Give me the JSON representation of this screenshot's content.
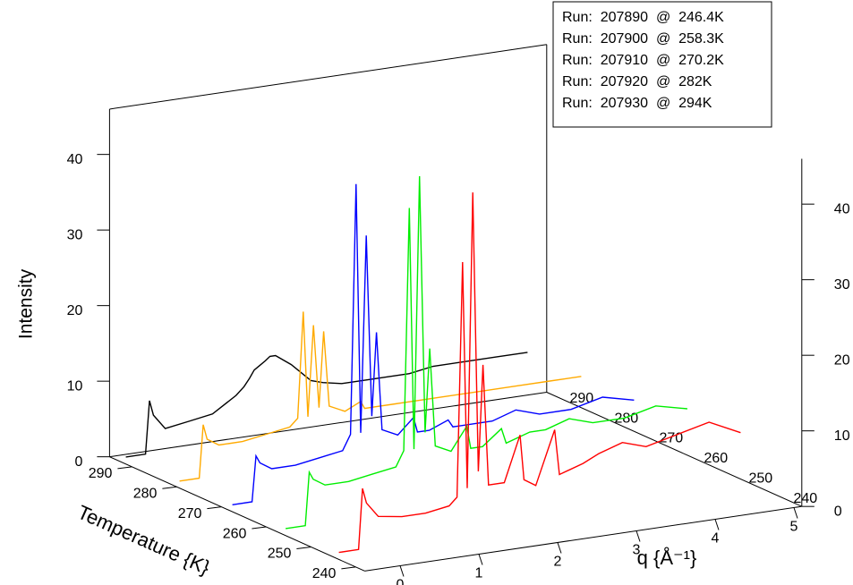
{
  "chart_data": {
    "type": "waterfall3d",
    "x_label": "q {Å⁻¹}",
    "y_label": "Intensity",
    "z_label": "Temperature {K}",
    "x": [
      -0.3,
      -0.05,
      0,
      0.05,
      0.2,
      0.5,
      0.8,
      1.1,
      1.2,
      1.27,
      1.33,
      1.4,
      1.47,
      1.53,
      1.6,
      1.8,
      2.0,
      2.05,
      2.2,
      2.44,
      2.5,
      2.8,
      3.0,
      3.3,
      3.6,
      4.0,
      4.4,
      4.8
    ],
    "series": [
      {
        "name": "Run:  207890  @  246.4K",
        "color": "#ff0000",
        "temperature": 246.4,
        "values": [
          0,
          0,
          8,
          6,
          4,
          3.5,
          3.5,
          4,
          5,
          36,
          6,
          45,
          8,
          22,
          6,
          6,
          12,
          6,
          5,
          12,
          6,
          7,
          8,
          9,
          8,
          9,
          10,
          8
        ]
      },
      {
        "name": "Run:  207900  @  258.3K",
        "color": "#00ee00",
        "temperature": 258.3,
        "values": [
          0,
          0,
          7,
          6,
          5,
          5,
          5.5,
          6,
          8,
          40,
          8,
          44,
          10,
          21,
          8,
          7,
          10,
          7,
          7,
          9,
          7,
          8,
          8,
          9,
          8,
          8,
          9,
          8
        ]
      },
      {
        "name": "Run:  207910  @  270.2K",
        "color": "#0000ff",
        "temperature": 270.2,
        "values": [
          0,
          0,
          6,
          5,
          4,
          4,
          4.5,
          5,
          7,
          40,
          7,
          33,
          9,
          20,
          7,
          6,
          8,
          6,
          6,
          7,
          6,
          6,
          6,
          7,
          6,
          6,
          7,
          6
        ]
      },
      {
        "name": "Run:  207920  @  282K",
        "color": "#ffaa00",
        "temperature": 282,
        "values": [
          0,
          0,
          7,
          5,
          4,
          4,
          4.5,
          5,
          6,
          20,
          6,
          18,
          7,
          17,
          7,
          6,
          7,
          6,
          6,
          6,
          6,
          6,
          6,
          6,
          6,
          6,
          6,
          6
        ]
      },
      {
        "name": "Run:  207930  @  294K",
        "color": "#000000",
        "temperature": 294,
        "values": [
          0,
          0,
          7,
          5,
          3,
          3.5,
          4,
          6,
          7,
          8,
          9,
          9.5,
          10,
          10.5,
          10.5,
          9,
          7,
          6.5,
          6,
          5.5,
          5.5,
          5.5,
          5.5,
          5.5,
          6,
          6,
          6,
          6
        ]
      }
    ],
    "xlim": [
      -0.45,
      5.1
    ],
    "ylim": [
      0,
      46
    ],
    "zlim": [
      238,
      295
    ],
    "xticks": [
      0,
      1,
      2,
      3,
      4,
      5
    ],
    "yticks": [
      0,
      10,
      20,
      30,
      40
    ],
    "zticks": [
      240,
      250,
      260,
      270,
      280,
      290
    ],
    "legend": "top-right"
  }
}
